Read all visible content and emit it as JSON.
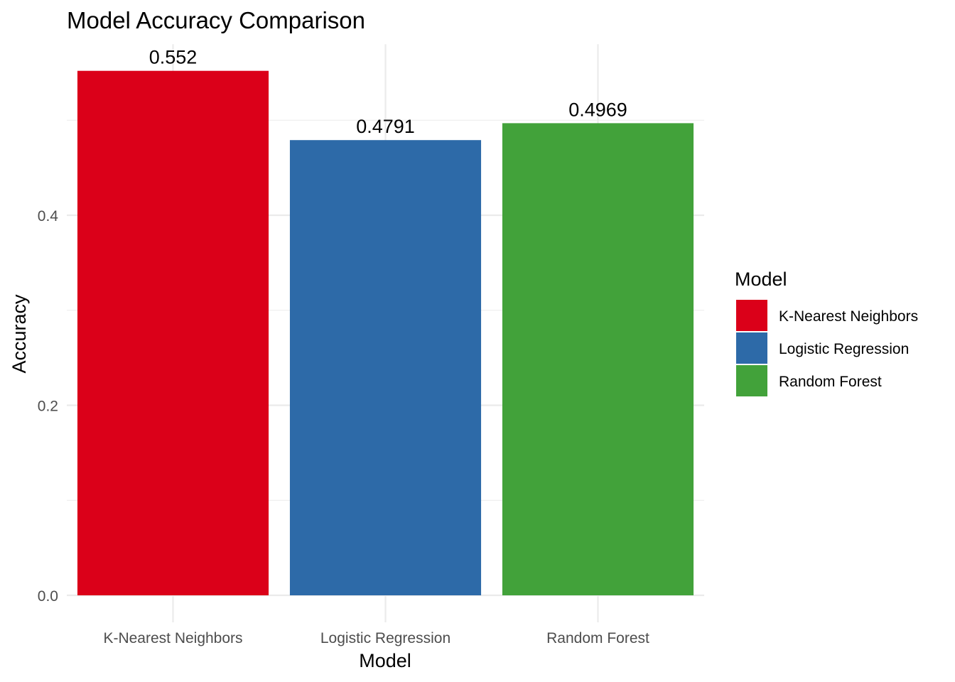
{
  "chart_data": {
    "type": "bar",
    "title": "Model Accuracy Comparison",
    "xlabel": "Model",
    "ylabel": "Accuracy",
    "categories": [
      "K-Nearest Neighbors",
      "Logistic Regression",
      "Random Forest"
    ],
    "values": [
      0.552,
      0.4791,
      0.4969
    ],
    "data_labels": [
      "0.552",
      "0.4791",
      "0.4969"
    ],
    "colors": [
      "#db0019",
      "#2d6aa8",
      "#42a23a"
    ],
    "ylim": [
      0,
      0.58
    ],
    "yticks": [
      0.0,
      0.2,
      0.4
    ],
    "ytick_labels": [
      "0.0",
      "0.2",
      "0.4"
    ],
    "yminor": [
      0.1,
      0.3,
      0.5
    ],
    "grid": true,
    "legend": {
      "title": "Model",
      "position": "right",
      "entries": [
        "K-Nearest Neighbors",
        "Logistic Regression",
        "Random Forest"
      ]
    }
  }
}
